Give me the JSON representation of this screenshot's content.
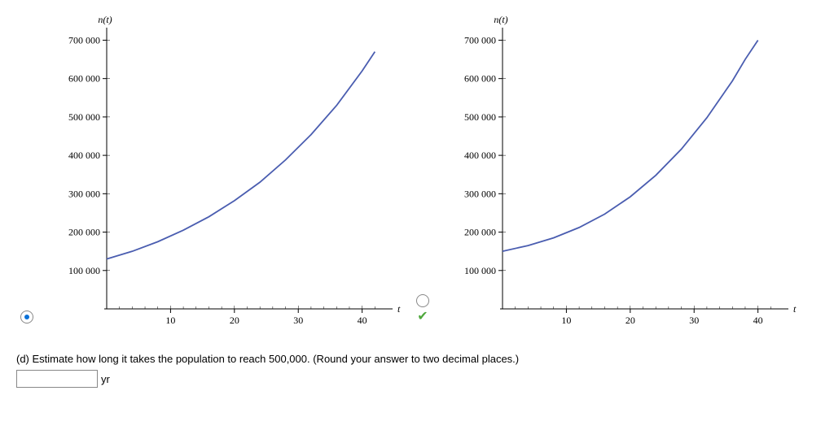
{
  "chart": {
    "type": "line",
    "title": "n(t)",
    "x_axis_label": "t",
    "xlim": [
      0,
      44
    ],
    "ylim": [
      0,
      720000
    ],
    "xticks": [
      10,
      20,
      30,
      40
    ],
    "yticks": [
      100000,
      200000,
      300000,
      400000,
      500000,
      600000,
      700000
    ],
    "ytick_labels": [
      "100 000",
      "200 000",
      "300 000",
      "400 000",
      "500 000",
      "600 000",
      "700 000"
    ],
    "curve_color": "#4a5db0",
    "curve_width": 1.8,
    "axis_color": "#000000",
    "tick_font_size": 12,
    "title_font_size": 12
  },
  "options": {
    "A": {
      "selected": true,
      "correct": true,
      "points": [
        [
          0,
          130000
        ],
        [
          4,
          150000
        ],
        [
          8,
          175000
        ],
        [
          12,
          205000
        ],
        [
          16,
          240000
        ],
        [
          20,
          282000
        ],
        [
          24,
          330000
        ],
        [
          28,
          388000
        ],
        [
          32,
          454000
        ],
        [
          36,
          530000
        ],
        [
          40,
          620000
        ],
        [
          42,
          670000
        ]
      ]
    },
    "B": {
      "selected": false,
      "correct": false,
      "points": [
        [
          0,
          150000
        ],
        [
          4,
          165000
        ],
        [
          8,
          185000
        ],
        [
          12,
          212000
        ],
        [
          16,
          247000
        ],
        [
          20,
          292000
        ],
        [
          24,
          348000
        ],
        [
          28,
          416000
        ],
        [
          32,
          498000
        ],
        [
          36,
          594000
        ],
        [
          38,
          650000
        ],
        [
          40,
          700000
        ]
      ]
    }
  },
  "question": {
    "prompt": "(d) Estimate how long it takes the population to reach 500,000. (Round your answer to two decimal places.)",
    "unit": "yr",
    "answer_value": ""
  }
}
